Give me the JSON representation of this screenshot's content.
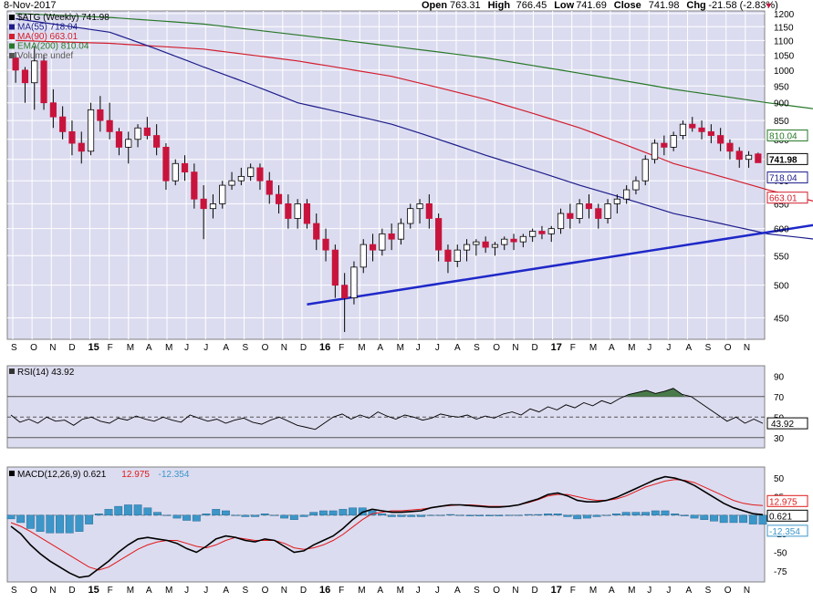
{
  "header": {
    "date": "8-Nov-2017",
    "quote": [
      {
        "label": "Open",
        "value": "763.31"
      },
      {
        "label": "High",
        "value": "766.45"
      },
      {
        "label": "Low",
        "value": "741.69"
      },
      {
        "label": "Close",
        "value": "741.98"
      },
      {
        "label": "Chg",
        "value": "-21.58 (-2.83%)"
      }
    ],
    "down_marker": "▼"
  },
  "colors": {
    "panel_bg": "#dcdcf0",
    "grid": "#ffffff",
    "up_candle": "#ffffff",
    "down_candle": "#c8143c",
    "ma55": "#1c1c8c",
    "ma90": "#d21e2d",
    "ema200": "#287828",
    "trendline": "#1e28c8",
    "rsi_line": "#000000",
    "rsi_fill": "#4a7a4a",
    "macd_line": "#000000",
    "signal_line": "#e01818",
    "histogram": "#3c96c8"
  },
  "chart_data": [
    {
      "type": "candlestick",
      "title": "$ATG (Weekly) 741.98",
      "timeframe": "Weekly",
      "symbol": "$ATG",
      "ylim": [
        420,
        1210
      ],
      "yscale": "log",
      "y_ticks": [
        450,
        500,
        550,
        600,
        650,
        700,
        750,
        800,
        850,
        900,
        950,
        1000,
        1050,
        1100,
        1150,
        1200
      ],
      "x_ticks": [
        "S",
        "O",
        "N",
        "D",
        "15",
        "F",
        "M",
        "A",
        "M",
        "J",
        "J",
        "A",
        "S",
        "O",
        "N",
        "D",
        "16",
        "F",
        "M",
        "A",
        "M",
        "J",
        "J",
        "A",
        "S",
        "O",
        "N",
        "D",
        "17",
        "F",
        "M",
        "A",
        "M",
        "J",
        "J",
        "A",
        "S",
        "O",
        "N"
      ],
      "legend": [
        {
          "label": "$ATG (Weekly) 741.98",
          "color": "#000000"
        },
        {
          "label": "MA(55) 718.04",
          "color": "#1c1c8c"
        },
        {
          "label": "MA(90) 663.01",
          "color": "#d21e2d"
        },
        {
          "label": "EMA(200) 810.04",
          "color": "#287828"
        },
        {
          "label": "Volume undef",
          "color": "#555555"
        }
      ],
      "value_tags": [
        {
          "value": 810.04,
          "text": "810.04",
          "color": "#287828"
        },
        {
          "value": 741.98,
          "text": "741.98",
          "color": "#000000",
          "bold": true
        },
        {
          "value": 718.04,
          "text": "718.04",
          "color": "#1c1c8c"
        },
        {
          "value": 663.01,
          "text": "663.01",
          "color": "#d21e2d"
        }
      ],
      "candles": [
        [
          1040,
          1060,
          960,
          1000
        ],
        [
          1000,
          1010,
          900,
          960
        ],
        [
          960,
          1080,
          880,
          1030
        ],
        [
          1030,
          1050,
          880,
          900
        ],
        [
          900,
          940,
          830,
          860
        ],
        [
          860,
          890,
          800,
          820
        ],
        [
          820,
          850,
          760,
          790
        ],
        [
          790,
          820,
          740,
          770
        ],
        [
          770,
          900,
          760,
          880
        ],
        [
          880,
          920,
          820,
          850
        ],
        [
          850,
          900,
          800,
          820
        ],
        [
          820,
          830,
          760,
          780
        ],
        [
          780,
          820,
          740,
          800
        ],
        [
          800,
          840,
          780,
          830
        ],
        [
          830,
          860,
          800,
          810
        ],
        [
          810,
          840,
          760,
          780
        ],
        [
          780,
          790,
          680,
          700
        ],
        [
          700,
          750,
          690,
          740
        ],
        [
          740,
          760,
          700,
          720
        ],
        [
          720,
          740,
          640,
          660
        ],
        [
          660,
          690,
          580,
          640
        ],
        [
          640,
          670,
          620,
          650
        ],
        [
          650,
          700,
          640,
          690
        ],
        [
          690,
          720,
          680,
          700
        ],
        [
          700,
          730,
          690,
          710
        ],
        [
          710,
          740,
          700,
          730
        ],
        [
          730,
          740,
          680,
          700
        ],
        [
          700,
          720,
          650,
          670
        ],
        [
          670,
          690,
          630,
          650
        ],
        [
          650,
          670,
          600,
          620
        ],
        [
          620,
          660,
          600,
          650
        ],
        [
          650,
          660,
          600,
          610
        ],
        [
          610,
          630,
          560,
          580
        ],
        [
          580,
          600,
          540,
          560
        ],
        [
          560,
          570,
          480,
          500
        ],
        [
          500,
          520,
          430,
          480
        ],
        [
          480,
          540,
          470,
          530
        ],
        [
          530,
          580,
          520,
          570
        ],
        [
          570,
          590,
          540,
          560
        ],
        [
          560,
          600,
          550,
          590
        ],
        [
          590,
          610,
          560,
          580
        ],
        [
          580,
          620,
          570,
          610
        ],
        [
          610,
          650,
          600,
          640
        ],
        [
          640,
          660,
          610,
          650
        ],
        [
          650,
          670,
          600,
          620
        ],
        [
          620,
          630,
          540,
          560
        ],
        [
          560,
          570,
          520,
          540
        ],
        [
          540,
          570,
          530,
          560
        ],
        [
          560,
          580,
          540,
          570
        ],
        [
          570,
          580,
          550,
          575
        ],
        [
          575,
          585,
          555,
          565
        ],
        [
          565,
          575,
          550,
          570
        ],
        [
          570,
          585,
          560,
          580
        ],
        [
          580,
          590,
          560,
          575
        ],
        [
          575,
          590,
          565,
          585
        ],
        [
          585,
          600,
          575,
          595
        ],
        [
          595,
          605,
          580,
          590
        ],
        [
          590,
          605,
          575,
          600
        ],
        [
          600,
          640,
          590,
          630
        ],
        [
          630,
          650,
          600,
          620
        ],
        [
          620,
          660,
          610,
          650
        ],
        [
          650,
          670,
          620,
          640
        ],
        [
          640,
          650,
          600,
          620
        ],
        [
          620,
          660,
          610,
          650
        ],
        [
          650,
          670,
          630,
          660
        ],
        [
          660,
          690,
          650,
          680
        ],
        [
          680,
          710,
          670,
          700
        ],
        [
          700,
          760,
          690,
          750
        ],
        [
          750,
          800,
          740,
          790
        ],
        [
          790,
          810,
          760,
          780
        ],
        [
          780,
          820,
          770,
          810
        ],
        [
          810,
          850,
          800,
          840
        ],
        [
          840,
          860,
          820,
          830
        ],
        [
          830,
          850,
          800,
          820
        ],
        [
          820,
          840,
          790,
          810
        ],
        [
          810,
          830,
          770,
          790
        ],
        [
          790,
          800,
          750,
          770
        ],
        [
          770,
          780,
          730,
          750
        ],
        [
          750,
          770,
          730,
          760
        ],
        [
          763.31,
          766.45,
          741.69,
          741.98
        ]
      ],
      "ma55": [
        [
          0,
          1180
        ],
        [
          10,
          1130
        ],
        [
          20,
          1010
        ],
        [
          30,
          900
        ],
        [
          40,
          840
        ],
        [
          50,
          760
        ],
        [
          60,
          690
        ],
        [
          70,
          630
        ],
        [
          80,
          590
        ],
        [
          90,
          570
        ],
        [
          100,
          612
        ],
        [
          110,
          650
        ],
        [
          120,
          700
        ],
        [
          127,
          718
        ]
      ],
      "ma90": [
        [
          0,
          1100
        ],
        [
          10,
          1090
        ],
        [
          20,
          1070
        ],
        [
          30,
          1030
        ],
        [
          40,
          980
        ],
        [
          50,
          910
        ],
        [
          60,
          830
        ],
        [
          70,
          740
        ],
        [
          80,
          680
        ],
        [
          90,
          630
        ],
        [
          100,
          600
        ],
        [
          110,
          610
        ],
        [
          120,
          635
        ],
        [
          127,
          663
        ]
      ],
      "ema200": [
        [
          0,
          1200
        ],
        [
          10,
          1185
        ],
        [
          20,
          1160
        ],
        [
          30,
          1120
        ],
        [
          40,
          1080
        ],
        [
          50,
          1040
        ],
        [
          60,
          990
        ],
        [
          70,
          940
        ],
        [
          80,
          900
        ],
        [
          90,
          865
        ],
        [
          100,
          840
        ],
        [
          110,
          825
        ],
        [
          120,
          815
        ],
        [
          127,
          810
        ]
      ],
      "trendline": {
        "from": [
          31,
          470
        ],
        "to": [
          127,
          741
        ]
      }
    },
    {
      "type": "line",
      "title": "RSI(14) 43.92",
      "indicator": "RSI",
      "period": 14,
      "ylim": [
        20,
        100
      ],
      "y_ticks": [
        30,
        50,
        70,
        90
      ],
      "reference_lines": [
        30,
        50,
        70
      ],
      "value_tag": {
        "value": 43.92,
        "text": "43.92"
      },
      "values": [
        52,
        45,
        48,
        44,
        50,
        46,
        47,
        42,
        48,
        50,
        46,
        44,
        49,
        47,
        51,
        48,
        46,
        50,
        47,
        45,
        52,
        49,
        46,
        48,
        44,
        47,
        49,
        45,
        43,
        47,
        50,
        46,
        42,
        40,
        38,
        44,
        50,
        53,
        48,
        52,
        49,
        55,
        51,
        48,
        52,
        50,
        47,
        49,
        53,
        51,
        50,
        52,
        48,
        51,
        49,
        53,
        55,
        52,
        58,
        55,
        60,
        57,
        62,
        59,
        64,
        61,
        66,
        63,
        68,
        72,
        74,
        76,
        73,
        75,
        78,
        72,
        70,
        64,
        58,
        52,
        46,
        50,
        44,
        48,
        43.92
      ]
    },
    {
      "type": "line",
      "title": "MACD(12,26,9) 0.621, 12.975, -12.354",
      "indicator": "MACD",
      "params": [
        12,
        26,
        9
      ],
      "legend": [
        {
          "label": "MACD(12,26,9) 0.621",
          "color": "#000000"
        },
        {
          "label": "12.975",
          "color": "#e01818"
        },
        {
          "label": "-12.354",
          "color": "#3c96c8"
        }
      ],
      "ylim": [
        -90,
        65
      ],
      "y_ticks": [
        50,
        25,
        0,
        -25,
        -50,
        -75
      ],
      "value_tags": [
        {
          "value": 12.975,
          "text": "12.975",
          "color": "#e01818"
        },
        {
          "value": 0.621,
          "text": "0.621",
          "color": "#000000"
        },
        {
          "value": -12.354,
          "text": "-12.354",
          "color": "#3c96c8"
        }
      ],
      "macd": [
        -15,
        -25,
        -40,
        -52,
        -62,
        -70,
        -78,
        -84,
        -82,
        -72,
        -62,
        -50,
        -40,
        -32,
        -30,
        -32,
        -34,
        -38,
        -45,
        -50,
        -42,
        -32,
        -28,
        -30,
        -34,
        -36,
        -32,
        -34,
        -42,
        -50,
        -48,
        -40,
        -34,
        -28,
        -18,
        -6,
        4,
        8,
        6,
        4,
        4,
        5,
        6,
        10,
        12,
        14,
        14,
        13,
        12,
        11,
        11,
        12,
        14,
        18,
        22,
        28,
        30,
        26,
        20,
        18,
        18,
        20,
        24,
        30,
        36,
        42,
        48,
        52,
        50,
        46,
        40,
        32,
        24,
        16,
        10,
        6,
        2,
        0.621
      ],
      "signal": [
        -10,
        -15,
        -22,
        -30,
        -38,
        -46,
        -54,
        -62,
        -70,
        -74,
        -70,
        -62,
        -54,
        -46,
        -40,
        -36,
        -34,
        -34,
        -38,
        -42,
        -44,
        -40,
        -34,
        -30,
        -32,
        -34,
        -34,
        -34,
        -38,
        -44,
        -46,
        -44,
        -40,
        -34,
        -26,
        -16,
        -6,
        2,
        4,
        6,
        6,
        7,
        8,
        10,
        12,
        13,
        14,
        14,
        13,
        12,
        12,
        12,
        14,
        17,
        21,
        26,
        28,
        28,
        25,
        22,
        20,
        20,
        22,
        26,
        32,
        38,
        42,
        46,
        48,
        47,
        44,
        38,
        32,
        26,
        20,
        16,
        14,
        12.975
      ],
      "histogram": [
        -5,
        -10,
        -18,
        -22,
        -24,
        -24,
        -24,
        -22,
        -12,
        2,
        8,
        12,
        14,
        14,
        10,
        4,
        0,
        -4,
        -7,
        -8,
        2,
        8,
        6,
        0,
        -2,
        -2,
        2,
        0,
        -4,
        -6,
        -2,
        4,
        6,
        6,
        8,
        10,
        10,
        6,
        2,
        -2,
        -2,
        -2,
        -2,
        0,
        0,
        1,
        0,
        -1,
        -1,
        -1,
        -1,
        0,
        0,
        1,
        1,
        2,
        2,
        -2,
        -5,
        -4,
        -2,
        0,
        2,
        4,
        4,
        4,
        6,
        6,
        2,
        -1,
        -4,
        -6,
        -8,
        -10,
        -10,
        -10,
        -12,
        -12.354
      ],
      "x_ticks": [
        "S",
        "O",
        "N",
        "D",
        "15",
        "F",
        "M",
        "A",
        "M",
        "J",
        "J",
        "A",
        "S",
        "O",
        "N",
        "D",
        "16",
        "F",
        "M",
        "A",
        "M",
        "J",
        "J",
        "A",
        "S",
        "O",
        "N",
        "D",
        "17",
        "F",
        "M",
        "A",
        "M",
        "J",
        "J",
        "A",
        "S",
        "O",
        "N"
      ]
    }
  ]
}
